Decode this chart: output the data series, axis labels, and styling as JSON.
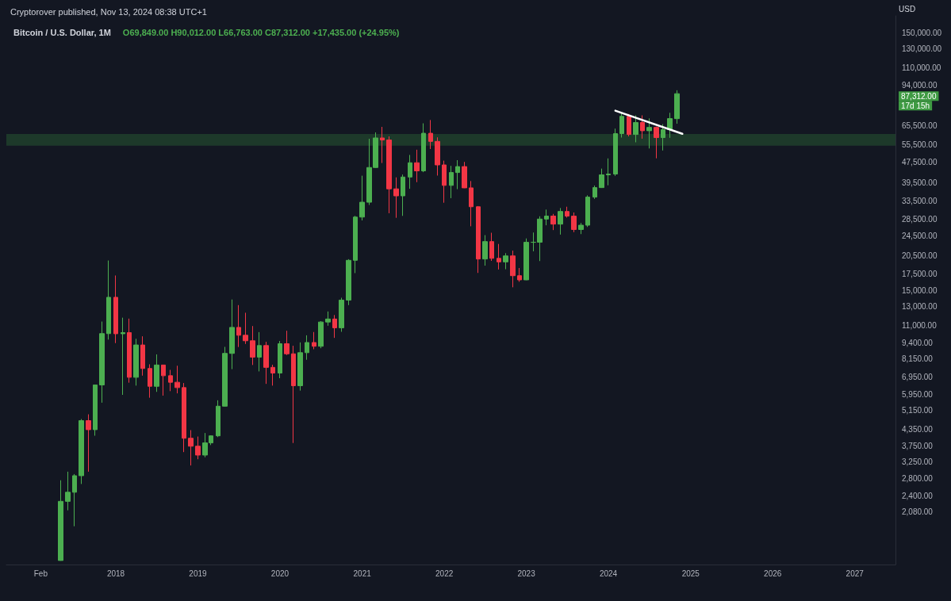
{
  "chart_data": {
    "type": "candlestick",
    "title": "Bitcoin / U.S. Dollar, 1M",
    "ylabel": "USD",
    "annotations": [
      "Cryptorover published, Nov 13, 2024 08:38 UTC+1",
      "O69,849.00 H90,012.00 L66,763.00 C87,312.00 +17,435.00 (+24.95%)",
      "87,312.00",
      "17d 15h"
    ],
    "x": [
      "2017-05",
      "2017-06",
      "2017-07",
      "2017-08",
      "2017-09",
      "2017-10",
      "2017-11",
      "2017-12",
      "2018-01",
      "2018-02",
      "2018-03",
      "2018-04",
      "2018-05",
      "2018-06",
      "2018-07",
      "2018-08",
      "2018-09",
      "2018-10",
      "2018-11",
      "2018-12",
      "2019-01",
      "2019-02",
      "2019-03",
      "2019-04",
      "2019-05",
      "2019-06",
      "2019-07",
      "2019-08",
      "2019-09",
      "2019-10",
      "2019-11",
      "2019-12",
      "2020-01",
      "2020-02",
      "2020-03",
      "2020-04",
      "2020-05",
      "2020-06",
      "2020-07",
      "2020-08",
      "2020-09",
      "2020-10",
      "2020-11",
      "2020-12",
      "2021-01",
      "2021-02",
      "2021-03",
      "2021-04",
      "2021-05",
      "2021-06",
      "2021-07",
      "2021-08",
      "2021-09",
      "2021-10",
      "2021-11",
      "2021-12",
      "2022-01",
      "2022-02",
      "2022-03",
      "2022-04",
      "2022-05",
      "2022-06",
      "2022-07",
      "2022-08",
      "2022-09",
      "2022-10",
      "2022-11",
      "2022-12",
      "2023-01",
      "2023-02",
      "2023-03",
      "2023-04",
      "2023-05",
      "2023-06",
      "2023-07",
      "2023-08",
      "2023-09",
      "2023-10",
      "2023-11",
      "2023-12",
      "2024-01",
      "2024-02",
      "2024-03",
      "2024-04",
      "2024-05",
      "2024-06",
      "2024-07",
      "2024-08",
      "2024-09",
      "2024-10",
      "2024-11"
    ],
    "ohlc": [
      [
        1348,
        2760,
        1345,
        2286
      ],
      [
        2286,
        2980,
        2110,
        2480
      ],
      [
        2480,
        2917,
        1830,
        2875
      ],
      [
        2875,
        4770,
        2670,
        4703
      ],
      [
        4703,
        4975,
        2980,
        4338
      ],
      [
        4338,
        6470,
        4110,
        6468
      ],
      [
        6468,
        11400,
        5520,
        10233
      ],
      [
        10233,
        19666,
        9700,
        14156
      ],
      [
        14156,
        17200,
        9400,
        10221
      ],
      [
        10221,
        11800,
        5920,
        10326
      ],
      [
        10326,
        11700,
        6600,
        6926
      ],
      [
        6926,
        9770,
        6430,
        9245
      ],
      [
        9245,
        9990,
        7030,
        7494
      ],
      [
        7494,
        7780,
        5770,
        6391
      ],
      [
        6391,
        8500,
        6080,
        7730
      ],
      [
        7730,
        7750,
        5880,
        7025
      ],
      [
        7025,
        7400,
        6120,
        6625
      ],
      [
        6625,
        7680,
        6000,
        6317
      ],
      [
        6317,
        6580,
        3550,
        4018
      ],
      [
        4018,
        4320,
        3150,
        3742
      ],
      [
        3742,
        4080,
        3330,
        3457
      ],
      [
        3457,
        4210,
        3390,
        3854
      ],
      [
        3854,
        4120,
        3780,
        4105
      ],
      [
        4105,
        5640,
        4060,
        5350
      ],
      [
        5350,
        9090,
        5330,
        8575
      ],
      [
        8575,
        13880,
        7450,
        10818
      ],
      [
        10818,
        13200,
        9080,
        10085
      ],
      [
        10085,
        12330,
        9330,
        9600
      ],
      [
        9600,
        10950,
        7730,
        8294
      ],
      [
        8294,
        10370,
        7300,
        9199
      ],
      [
        9199,
        9510,
        6530,
        7569
      ],
      [
        7569,
        7750,
        6430,
        7194
      ],
      [
        7194,
        9580,
        6870,
        9350
      ],
      [
        9350,
        10500,
        8450,
        8543
      ],
      [
        8543,
        9180,
        3850,
        6424
      ],
      [
        6424,
        9460,
        6150,
        8630
      ],
      [
        8630,
        10080,
        8100,
        9450
      ],
      [
        9450,
        10380,
        8900,
        9140
      ],
      [
        9140,
        11440,
        8980,
        11350
      ],
      [
        11350,
        12470,
        10980,
        11660
      ],
      [
        11660,
        12080,
        9850,
        10780
      ],
      [
        10780,
        14100,
        10400,
        13800
      ],
      [
        13800,
        19900,
        13200,
        19700
      ],
      [
        19700,
        29300,
        17570,
        28990
      ],
      [
        28990,
        41950,
        28130,
        33100
      ],
      [
        33100,
        58350,
        32300,
        45140
      ],
      [
        45140,
        61780,
        45000,
        58790
      ],
      [
        58790,
        64900,
        47000,
        57720
      ],
      [
        57720,
        59600,
        30000,
        37300
      ],
      [
        37300,
        41330,
        28800,
        35040
      ],
      [
        35040,
        42400,
        29300,
        41460
      ],
      [
        41460,
        50500,
        37330,
        47100
      ],
      [
        47100,
        52920,
        39600,
        43800
      ],
      [
        43800,
        67000,
        43300,
        61300
      ],
      [
        61300,
        69000,
        53250,
        57000
      ],
      [
        57000,
        59100,
        42000,
        46200
      ],
      [
        46200,
        47990,
        32950,
        38480
      ],
      [
        38480,
        45800,
        34320,
        43160
      ],
      [
        43160,
        48200,
        37200,
        45510
      ],
      [
        45510,
        47450,
        37550,
        37630
      ],
      [
        37630,
        40000,
        26700,
        31790
      ],
      [
        31790,
        31980,
        17600,
        19930
      ],
      [
        19930,
        24670,
        18780,
        23290
      ],
      [
        23290,
        25200,
        19600,
        20050
      ],
      [
        20050,
        22800,
        18150,
        19420
      ],
      [
        19420,
        21000,
        18190,
        20490
      ],
      [
        20490,
        21480,
        15480,
        17170
      ],
      [
        17170,
        18390,
        16260,
        16540
      ],
      [
        16540,
        23950,
        16500,
        23140
      ],
      [
        23140,
        25250,
        21350,
        23150
      ],
      [
        23150,
        29190,
        19570,
        28480
      ],
      [
        28480,
        31000,
        26940,
        29250
      ],
      [
        29250,
        29820,
        25810,
        27220
      ],
      [
        27220,
        31430,
        24790,
        30480
      ],
      [
        30480,
        31800,
        28860,
        29230
      ],
      [
        29230,
        30200,
        25330,
        25940
      ],
      [
        25940,
        27500,
        24900,
        26960
      ],
      [
        26960,
        35200,
        26540,
        34650
      ],
      [
        34650,
        38420,
        34100,
        37720
      ],
      [
        37720,
        44700,
        37600,
        42280
      ],
      [
        42280,
        48970,
        38500,
        42580
      ],
      [
        42580,
        63900,
        41880,
        61130
      ],
      [
        61130,
        73800,
        59000,
        71300
      ],
      [
        71300,
        72800,
        59600,
        60630
      ],
      [
        60630,
        71950,
        56550,
        67490
      ],
      [
        67490,
        71950,
        58400,
        62700
      ],
      [
        62700,
        70000,
        53500,
        64600
      ],
      [
        64600,
        65100,
        49000,
        58970
      ],
      [
        58970,
        66500,
        52550,
        63330
      ],
      [
        63330,
        73600,
        58850,
        69877
      ],
      [
        69849,
        90012,
        66763,
        87312
      ]
    ],
    "colors": [
      "#4caf50",
      "#4caf50",
      "#4caf50",
      "#4caf50",
      "#f23645",
      "#4caf50",
      "#4caf50",
      "#4caf50",
      "#f23645",
      "#4caf50",
      "#f23645",
      "#4caf50",
      "#f23645",
      "#f23645",
      "#4caf50",
      "#f23645",
      "#f23645",
      "#f23645",
      "#f23645",
      "#f23645",
      "#f23645",
      "#4caf50",
      "#4caf50",
      "#4caf50",
      "#4caf50",
      "#4caf50",
      "#f23645",
      "#f23645",
      "#f23645",
      "#4caf50",
      "#f23645",
      "#f23645",
      "#4caf50",
      "#f23645",
      "#f23645",
      "#4caf50",
      "#4caf50",
      "#f23645",
      "#4caf50",
      "#4caf50",
      "#f23645",
      "#4caf50",
      "#4caf50",
      "#4caf50",
      "#4caf50",
      "#4caf50",
      "#4caf50",
      "#f23645",
      "#f23645",
      "#f23645",
      "#4caf50",
      "#4caf50",
      "#f23645",
      "#4caf50",
      "#f23645",
      "#f23645",
      "#f23645",
      "#4caf50",
      "#4caf50",
      "#f23645",
      "#f23645",
      "#f23645",
      "#4caf50",
      "#f23645",
      "#f23645",
      "#4caf50",
      "#f23645",
      "#f23645",
      "#4caf50",
      "#4caf50",
      "#4caf50",
      "#4caf50",
      "#f23645",
      "#4caf50",
      "#f23645",
      "#f23645",
      "#4caf50",
      "#4caf50",
      "#4caf50",
      "#4caf50",
      "#4caf50",
      "#4caf50",
      "#4caf50",
      "#f23645",
      "#4caf50",
      "#f23645",
      "#4caf50",
      "#f23645",
      "#4caf50",
      "#4caf50",
      "#4caf50"
    ],
    "series": [
      {
        "type": "line",
        "color": "#ffffff",
        "x": [
          "2024-02-01",
          "2024-11-25"
        ],
        "values": [
          75000,
          61000
        ],
        "marker": "none"
      }
    ],
    "bands": [
      {
        "axis": "y",
        "from": 54900,
        "to": 60900,
        "color": "#1f3d2b"
      }
    ],
    "log": true,
    "ylim": [
      1300,
      175000
    ],
    "yticks": [
      {
        "value": 2080,
        "label": "2,080.00"
      },
      {
        "value": 2400,
        "label": "2,400.00"
      },
      {
        "value": 2800,
        "label": "2,800.00"
      },
      {
        "value": 3250,
        "label": "3,250.00"
      },
      {
        "value": 3750,
        "label": "3,750.00"
      },
      {
        "value": 4350,
        "label": "4,350.00"
      },
      {
        "value": 5150,
        "label": "5,150.00"
      },
      {
        "value": 5950,
        "label": "5,950.00"
      },
      {
        "value": 6950,
        "label": "6,950.00"
      },
      {
        "value": 8150,
        "label": "8,150.00"
      },
      {
        "value": 9400,
        "label": "9,400.00"
      },
      {
        "value": 11000,
        "label": "11,000.00"
      },
      {
        "value": 13000,
        "label": "13,000.00"
      },
      {
        "value": 15000,
        "label": "15,000.00"
      },
      {
        "value": 17500,
        "label": "17,500.00"
      },
      {
        "value": 20500,
        "label": "20,500.00"
      },
      {
        "value": 24500,
        "label": "24,500.00"
      },
      {
        "value": 28500,
        "label": "28,500.00"
      },
      {
        "value": 33500,
        "label": "33,500.00"
      },
      {
        "value": 39500,
        "label": "39,500.00"
      },
      {
        "value": 47500,
        "label": "47,500.00"
      },
      {
        "value": 55500,
        "label": "55,500.00"
      },
      {
        "value": 65500,
        "label": "65,500.00"
      },
      {
        "value": 94000,
        "label": "94,000.00"
      },
      {
        "value": 110000,
        "label": "110,000.00"
      },
      {
        "value": 130000,
        "label": "130,000.00"
      },
      {
        "value": 150000,
        "label": "150,000.00"
      }
    ],
    "xlim": [
      "2016-09",
      "2027-07"
    ],
    "xticks": [
      {
        "value": "2017-02",
        "label": "Feb"
      },
      {
        "value": "2018-01",
        "label": "2018"
      },
      {
        "value": "2019-01",
        "label": "2019"
      },
      {
        "value": "2020-01",
        "label": "2020"
      },
      {
        "value": "2021-01",
        "label": "2021"
      },
      {
        "value": "2022-01",
        "label": "2022"
      },
      {
        "value": "2023-01",
        "label": "2023"
      },
      {
        "value": "2024-01",
        "label": "2024"
      },
      {
        "value": "2025-01",
        "label": "2025"
      },
      {
        "value": "2026-01",
        "label": "2026"
      },
      {
        "value": "2027-01",
        "label": "2027"
      }
    ],
    "grid": false
  }
}
